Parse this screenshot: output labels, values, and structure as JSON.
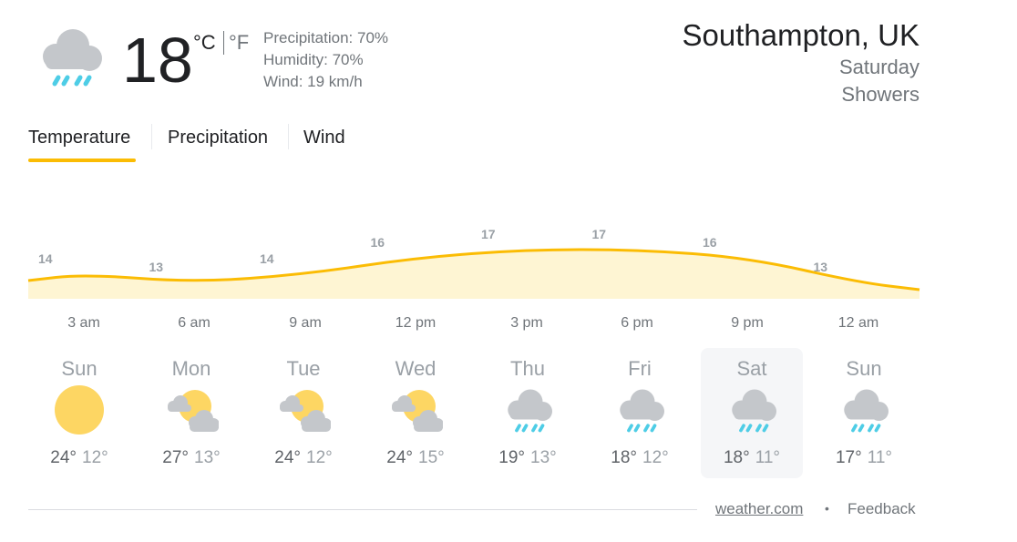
{
  "current": {
    "temperature": "18",
    "unit_c": "°C",
    "unit_f": "°F",
    "precipitation": "Precipitation: 70%",
    "humidity": "Humidity: 70%",
    "wind": "Wind: 19 km/h",
    "icon": "rain-cloud-icon"
  },
  "location": {
    "name": "Southampton, UK",
    "day": "Saturday",
    "condition": "Showers"
  },
  "tabs": [
    {
      "label": "Temperature",
      "selected": true
    },
    {
      "label": "Precipitation",
      "selected": false
    },
    {
      "label": "Wind",
      "selected": false
    }
  ],
  "chart_data": {
    "type": "area",
    "x": [
      "3 am",
      "6 am",
      "9 am",
      "12 pm",
      "3 pm",
      "6 pm",
      "9 pm",
      "12 am"
    ],
    "values": [
      14,
      13,
      14,
      16,
      17,
      17,
      16,
      13
    ],
    "series_color": "#fbbc04",
    "fill_color": "#fef5d3"
  },
  "days": [
    {
      "name": "Sun",
      "high": "24°",
      "low": "12°",
      "icon": "sun-icon"
    },
    {
      "name": "Mon",
      "high": "27°",
      "low": "13°",
      "icon": "partly-sunny-icon"
    },
    {
      "name": "Tue",
      "high": "24°",
      "low": "12°",
      "icon": "partly-sunny-icon"
    },
    {
      "name": "Wed",
      "high": "24°",
      "low": "15°",
      "icon": "partly-sunny-icon"
    },
    {
      "name": "Thu",
      "high": "19°",
      "low": "13°",
      "icon": "rain-cloud-icon"
    },
    {
      "name": "Fri",
      "high": "18°",
      "low": "12°",
      "icon": "rain-cloud-icon"
    },
    {
      "name": "Sat",
      "high": "18°",
      "low": "11°",
      "icon": "rain-cloud-icon",
      "selected": true
    },
    {
      "name": "Sun",
      "high": "17°",
      "low": "11°",
      "icon": "rain-cloud-icon"
    }
  ],
  "footer": {
    "source": "weather.com",
    "separator": "•",
    "feedback": "Feedback"
  },
  "colors": {
    "accent": "#fbbc04",
    "sun": "#fdd663",
    "cloud": "#bdc1c6",
    "rain": "#4ecde6"
  }
}
